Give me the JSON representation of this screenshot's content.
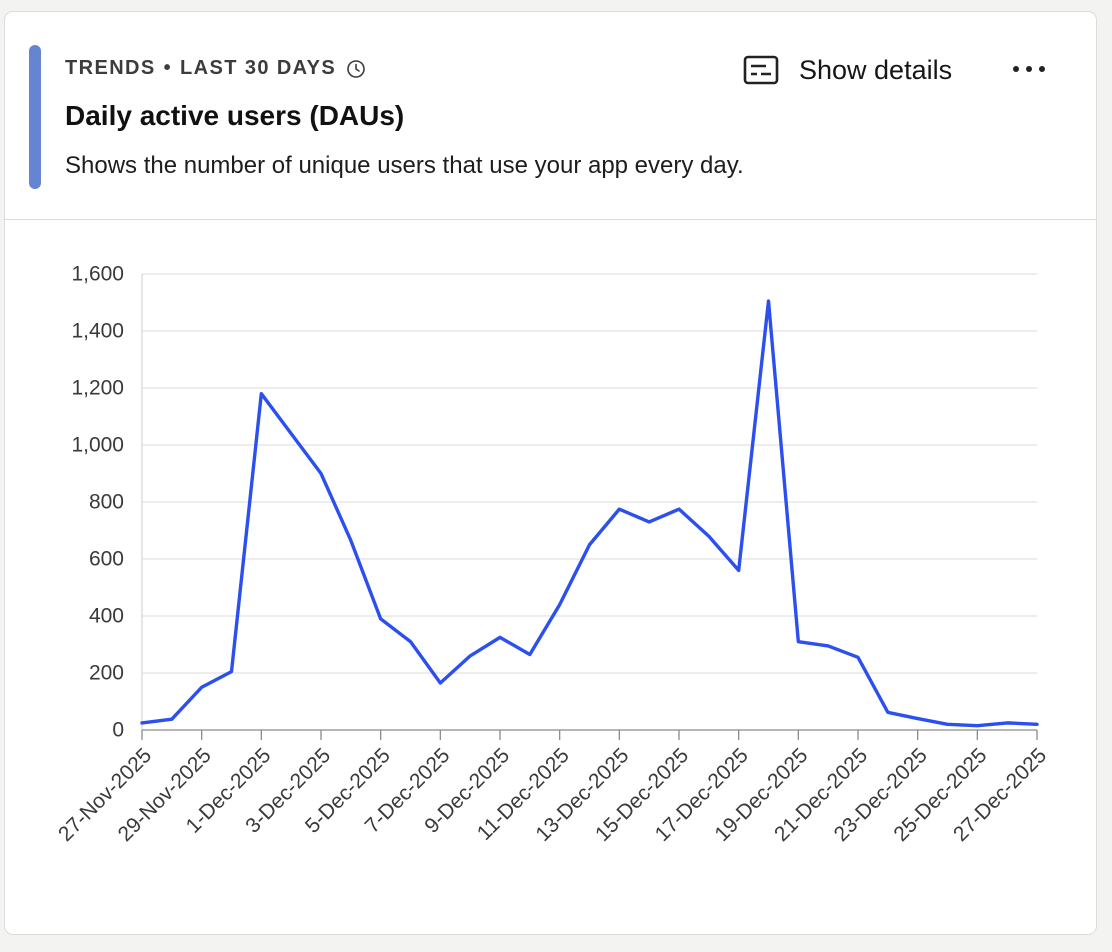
{
  "header": {
    "kicker_section": "TRENDS",
    "kicker_separator": "•",
    "kicker_range": "LAST 30 DAYS",
    "clock_icon": "clock-icon",
    "title": "Daily active users (DAUs)",
    "description": "Shows the number of unique users that use your app every day.",
    "show_details_label": "Show details",
    "details_icon": "caption-icon",
    "more_icon": "ellipsis-icon",
    "accent_color": "#6585d2"
  },
  "chart_data": {
    "type": "line",
    "title": "",
    "xlabel": "",
    "ylabel": "",
    "ylim": [
      0,
      1600
    ],
    "yticks": [
      0,
      200,
      400,
      600,
      800,
      1000,
      1200,
      1400,
      1600
    ],
    "ytick_labels": [
      "0",
      "200",
      "400",
      "600",
      "800",
      "1,000",
      "1,200",
      "1,400",
      "1,600"
    ],
    "grid": true,
    "legend": "none",
    "line_color": "#2c4ff0",
    "x": [
      "27-Nov-2025",
      "28-Nov-2025",
      "29-Nov-2025",
      "30-Nov-2025",
      "1-Dec-2025",
      "2-Dec-2025",
      "3-Dec-2025",
      "4-Dec-2025",
      "5-Dec-2025",
      "6-Dec-2025",
      "7-Dec-2025",
      "8-Dec-2025",
      "9-Dec-2025",
      "10-Dec-2025",
      "11-Dec-2025",
      "12-Dec-2025",
      "13-Dec-2025",
      "14-Dec-2025",
      "15-Dec-2025",
      "16-Dec-2025",
      "17-Dec-2025",
      "18-Dec-2025",
      "19-Dec-2025",
      "20-Dec-2025",
      "21-Dec-2025",
      "22-Dec-2025",
      "23-Dec-2025",
      "24-Dec-2025",
      "25-Dec-2025",
      "26-Dec-2025",
      "27-Dec-2025"
    ],
    "xtick_labels": [
      "27-Nov-2025",
      "29-Nov-2025",
      "1-Dec-2025",
      "3-Dec-2025",
      "5-Dec-2025",
      "7-Dec-2025",
      "9-Dec-2025",
      "11-Dec-2025",
      "13-Dec-2025",
      "15-Dec-2025",
      "17-Dec-2025",
      "19-Dec-2025",
      "21-Dec-2025",
      "23-Dec-2025",
      "25-Dec-2025",
      "27-Dec-2025"
    ],
    "series": [
      {
        "values": [
          25,
          38,
          150,
          205,
          1180,
          1040,
          900,
          665,
          390,
          310,
          165,
          260,
          325,
          265,
          440,
          650,
          775,
          730,
          775,
          680,
          560,
          1505,
          310,
          295,
          255,
          62,
          40,
          20,
          15,
          25,
          20
        ]
      }
    ]
  }
}
